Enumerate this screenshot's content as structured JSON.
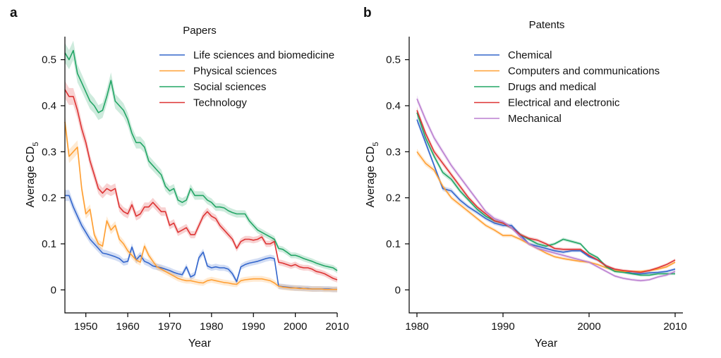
{
  "chart_data": [
    {
      "type": "line",
      "panel_label": "a",
      "title": "Papers",
      "xlabel": "Year",
      "ylabel": "Average CD",
      "ylabel_subscript": "5",
      "xlim": [
        1945,
        2010
      ],
      "ylim": [
        -0.05,
        0.55
      ],
      "xticks": [
        1950,
        1960,
        1970,
        1980,
        1990,
        2000,
        2010
      ],
      "yticks": [
        0,
        0.1,
        0.2,
        0.3,
        0.4,
        0.5
      ],
      "grid": false,
      "legend": "top-right",
      "series": [
        {
          "name": "Life sciences and biomedicine",
          "color": "#3366cc",
          "x": [
            1945,
            1946,
            1947,
            1948,
            1949,
            1950,
            1951,
            1952,
            1953,
            1954,
            1955,
            1956,
            1957,
            1958,
            1959,
            1960,
            1961,
            1962,
            1963,
            1964,
            1965,
            1966,
            1967,
            1968,
            1969,
            1970,
            1971,
            1972,
            1973,
            1974,
            1975,
            1976,
            1977,
            1978,
            1979,
            1980,
            1981,
            1982,
            1983,
            1984,
            1985,
            1986,
            1987,
            1988,
            1989,
            1990,
            1991,
            1992,
            1993,
            1994,
            1995,
            1996,
            1997,
            1998,
            1999,
            2000,
            2001,
            2002,
            2003,
            2004,
            2005,
            2006,
            2007,
            2008,
            2009,
            2010
          ],
          "y": [
            0.205,
            0.205,
            0.18,
            0.16,
            0.14,
            0.125,
            0.11,
            0.1,
            0.09,
            0.08,
            0.078,
            0.075,
            0.072,
            0.068,
            0.06,
            0.062,
            0.093,
            0.065,
            0.075,
            0.062,
            0.058,
            0.052,
            0.05,
            0.048,
            0.045,
            0.042,
            0.038,
            0.035,
            0.033,
            0.05,
            0.028,
            0.033,
            0.07,
            0.082,
            0.052,
            0.048,
            0.05,
            0.048,
            0.048,
            0.045,
            0.035,
            0.018,
            0.05,
            0.055,
            0.058,
            0.06,
            0.062,
            0.065,
            0.068,
            0.07,
            0.068,
            0.008,
            0.007,
            0.006,
            0.005,
            0.004,
            0.004,
            0.003,
            0.003,
            0.002,
            0.002,
            0.002,
            0.002,
            0.002,
            0.001,
            0.001
          ]
        },
        {
          "name": "Physical sciences",
          "color": "#ff9f33",
          "x": [
            1945,
            1946,
            1947,
            1948,
            1949,
            1950,
            1951,
            1952,
            1953,
            1954,
            1955,
            1956,
            1957,
            1958,
            1959,
            1960,
            1961,
            1962,
            1963,
            1964,
            1965,
            1966,
            1967,
            1968,
            1969,
            1970,
            1971,
            1972,
            1973,
            1974,
            1975,
            1976,
            1977,
            1978,
            1979,
            1980,
            1981,
            1982,
            1983,
            1984,
            1985,
            1986,
            1987,
            1988,
            1989,
            1990,
            1991,
            1992,
            1993,
            1994,
            1995,
            1996,
            1997,
            1998,
            1999,
            2000,
            2001,
            2002,
            2003,
            2004,
            2005,
            2006,
            2007,
            2008,
            2009,
            2010
          ],
          "y": [
            0.365,
            0.29,
            0.3,
            0.31,
            0.22,
            0.165,
            0.175,
            0.12,
            0.1,
            0.095,
            0.15,
            0.13,
            0.14,
            0.11,
            0.1,
            0.085,
            0.075,
            0.065,
            0.06,
            0.095,
            0.075,
            0.062,
            0.05,
            0.045,
            0.04,
            0.035,
            0.03,
            0.025,
            0.022,
            0.02,
            0.02,
            0.018,
            0.016,
            0.015,
            0.02,
            0.022,
            0.02,
            0.018,
            0.016,
            0.015,
            0.013,
            0.012,
            0.02,
            0.022,
            0.023,
            0.024,
            0.024,
            0.024,
            0.022,
            0.02,
            0.015,
            0.008,
            0.006,
            0.005,
            0.004,
            0.004,
            0.003,
            0.003,
            0.002,
            0.002,
            0.002,
            0.002,
            0.001,
            0.001,
            0.001,
            0.001
          ]
        },
        {
          "name": "Social sciences",
          "color": "#22a565",
          "x": [
            1945,
            1946,
            1947,
            1948,
            1949,
            1950,
            1951,
            1952,
            1953,
            1954,
            1955,
            1956,
            1957,
            1958,
            1959,
            1960,
            1961,
            1962,
            1963,
            1964,
            1965,
            1966,
            1967,
            1968,
            1969,
            1970,
            1971,
            1972,
            1973,
            1974,
            1975,
            1976,
            1977,
            1978,
            1979,
            1980,
            1981,
            1982,
            1983,
            1984,
            1985,
            1986,
            1987,
            1988,
            1989,
            1990,
            1991,
            1992,
            1993,
            1994,
            1995,
            1996,
            1997,
            1998,
            1999,
            2000,
            2001,
            2002,
            2003,
            2004,
            2005,
            2006,
            2007,
            2008,
            2009,
            2010
          ],
          "y": [
            0.515,
            0.5,
            0.52,
            0.47,
            0.45,
            0.43,
            0.41,
            0.4,
            0.385,
            0.39,
            0.42,
            0.455,
            0.41,
            0.4,
            0.39,
            0.37,
            0.34,
            0.32,
            0.32,
            0.31,
            0.28,
            0.27,
            0.26,
            0.25,
            0.225,
            0.215,
            0.22,
            0.195,
            0.19,
            0.195,
            0.22,
            0.205,
            0.205,
            0.205,
            0.195,
            0.19,
            0.18,
            0.18,
            0.178,
            0.172,
            0.168,
            0.165,
            0.165,
            0.165,
            0.15,
            0.14,
            0.13,
            0.125,
            0.12,
            0.115,
            0.11,
            0.09,
            0.088,
            0.082,
            0.075,
            0.075,
            0.072,
            0.068,
            0.065,
            0.062,
            0.058,
            0.055,
            0.052,
            0.05,
            0.048,
            0.042
          ]
        },
        {
          "name": "Technology",
          "color": "#dd3333",
          "x": [
            1945,
            1946,
            1947,
            1948,
            1949,
            1950,
            1951,
            1952,
            1953,
            1954,
            1955,
            1956,
            1957,
            1958,
            1959,
            1960,
            1961,
            1962,
            1963,
            1964,
            1965,
            1966,
            1967,
            1968,
            1969,
            1970,
            1971,
            1972,
            1973,
            1974,
            1975,
            1976,
            1977,
            1978,
            1979,
            1980,
            1981,
            1982,
            1983,
            1984,
            1985,
            1986,
            1987,
            1988,
            1989,
            1990,
            1991,
            1992,
            1993,
            1994,
            1995,
            1996,
            1997,
            1998,
            1999,
            2000,
            2001,
            2002,
            2003,
            2004,
            2005,
            2006,
            2007,
            2008,
            2009,
            2010
          ],
          "y": [
            0.435,
            0.42,
            0.42,
            0.39,
            0.35,
            0.32,
            0.28,
            0.25,
            0.22,
            0.21,
            0.22,
            0.215,
            0.22,
            0.18,
            0.17,
            0.165,
            0.185,
            0.16,
            0.165,
            0.18,
            0.18,
            0.19,
            0.18,
            0.17,
            0.17,
            0.14,
            0.145,
            0.125,
            0.13,
            0.135,
            0.12,
            0.12,
            0.14,
            0.16,
            0.17,
            0.16,
            0.155,
            0.14,
            0.13,
            0.12,
            0.11,
            0.09,
            0.105,
            0.11,
            0.11,
            0.108,
            0.11,
            0.115,
            0.1,
            0.1,
            0.105,
            0.06,
            0.058,
            0.055,
            0.052,
            0.055,
            0.05,
            0.048,
            0.048,
            0.045,
            0.04,
            0.038,
            0.035,
            0.03,
            0.025,
            0.022
          ]
        }
      ]
    },
    {
      "type": "line",
      "panel_label": "b",
      "title": "Patents",
      "xlabel": "Year",
      "ylabel": "Average CD",
      "ylabel_subscript": "5",
      "xlim": [
        1980,
        2010
      ],
      "ylim": [
        -0.05,
        0.55
      ],
      "xticks": [
        1980,
        1990,
        2000,
        2010
      ],
      "yticks": [
        0,
        0.1,
        0.2,
        0.3,
        0.4,
        0.5
      ],
      "grid": false,
      "legend": "top-center",
      "series": [
        {
          "name": "Chemical",
          "color": "#3366cc",
          "x": [
            1980,
            1981,
            1982,
            1983,
            1984,
            1985,
            1986,
            1987,
            1988,
            1989,
            1990,
            1991,
            1992,
            1993,
            1994,
            1995,
            1996,
            1997,
            1998,
            1999,
            2000,
            2001,
            2002,
            2003,
            2004,
            2005,
            2006,
            2007,
            2008,
            2009,
            2010
          ],
          "y": [
            0.37,
            0.32,
            0.27,
            0.22,
            0.215,
            0.195,
            0.18,
            0.168,
            0.155,
            0.145,
            0.14,
            0.14,
            0.12,
            0.1,
            0.095,
            0.09,
            0.085,
            0.082,
            0.085,
            0.085,
            0.072,
            0.065,
            0.052,
            0.042,
            0.04,
            0.036,
            0.035,
            0.037,
            0.038,
            0.04,
            0.045
          ]
        },
        {
          "name": "Computers and communications",
          "color": "#ff9f33",
          "x": [
            1980,
            1981,
            1982,
            1983,
            1984,
            1985,
            1986,
            1987,
            1988,
            1989,
            1990,
            1991,
            1992,
            1993,
            1994,
            1995,
            1996,
            1997,
            1998,
            1999,
            2000,
            2001,
            2002,
            2003,
            2004,
            2005,
            2006,
            2007,
            2008,
            2009,
            2010
          ],
          "y": [
            0.3,
            0.275,
            0.26,
            0.225,
            0.2,
            0.185,
            0.17,
            0.155,
            0.14,
            0.13,
            0.118,
            0.118,
            0.11,
            0.1,
            0.09,
            0.08,
            0.072,
            0.068,
            0.065,
            0.062,
            0.06,
            0.055,
            0.048,
            0.042,
            0.04,
            0.04,
            0.04,
            0.042,
            0.045,
            0.05,
            0.06
          ]
        },
        {
          "name": "Drugs and medical",
          "color": "#22a565",
          "x": [
            1980,
            1981,
            1982,
            1983,
            1984,
            1985,
            1986,
            1987,
            1988,
            1989,
            1990,
            1991,
            1992,
            1993,
            1994,
            1995,
            1996,
            1997,
            1998,
            1999,
            2000,
            2001,
            2002,
            2003,
            2004,
            2005,
            2006,
            2007,
            2008,
            2009,
            2010
          ],
          "y": [
            0.385,
            0.33,
            0.29,
            0.255,
            0.24,
            0.215,
            0.195,
            0.175,
            0.16,
            0.15,
            0.145,
            0.135,
            0.12,
            0.11,
            0.1,
            0.095,
            0.1,
            0.11,
            0.105,
            0.1,
            0.08,
            0.07,
            0.05,
            0.04,
            0.038,
            0.035,
            0.032,
            0.032,
            0.035,
            0.035,
            0.035
          ]
        },
        {
          "name": "Electrical and electronic",
          "color": "#dd3333",
          "x": [
            1980,
            1981,
            1982,
            1983,
            1984,
            1985,
            1986,
            1987,
            1988,
            1989,
            1990,
            1991,
            1992,
            1993,
            1994,
            1995,
            1996,
            1997,
            1998,
            1999,
            2000,
            2001,
            2002,
            2003,
            2004,
            2005,
            2006,
            2007,
            2008,
            2009,
            2010
          ],
          "y": [
            0.39,
            0.34,
            0.3,
            0.275,
            0.25,
            0.225,
            0.2,
            0.18,
            0.165,
            0.15,
            0.145,
            0.135,
            0.12,
            0.112,
            0.108,
            0.1,
            0.09,
            0.088,
            0.088,
            0.088,
            0.075,
            0.065,
            0.052,
            0.045,
            0.042,
            0.04,
            0.038,
            0.042,
            0.048,
            0.055,
            0.065
          ]
        },
        {
          "name": "Mechanical",
          "color": "#bb7fd0",
          "x": [
            1980,
            1981,
            1982,
            1983,
            1984,
            1985,
            1986,
            1987,
            1988,
            1989,
            1990,
            1991,
            1992,
            1993,
            1994,
            1995,
            1996,
            1997,
            1998,
            1999,
            2000,
            2001,
            2002,
            2003,
            2004,
            2005,
            2006,
            2007,
            2008,
            2009,
            2010
          ],
          "y": [
            0.415,
            0.37,
            0.33,
            0.3,
            0.27,
            0.245,
            0.22,
            0.195,
            0.17,
            0.155,
            0.148,
            0.135,
            0.115,
            0.1,
            0.09,
            0.085,
            0.08,
            0.075,
            0.07,
            0.065,
            0.06,
            0.05,
            0.04,
            0.03,
            0.025,
            0.022,
            0.02,
            0.022,
            0.028,
            0.032,
            0.04
          ]
        }
      ]
    }
  ]
}
